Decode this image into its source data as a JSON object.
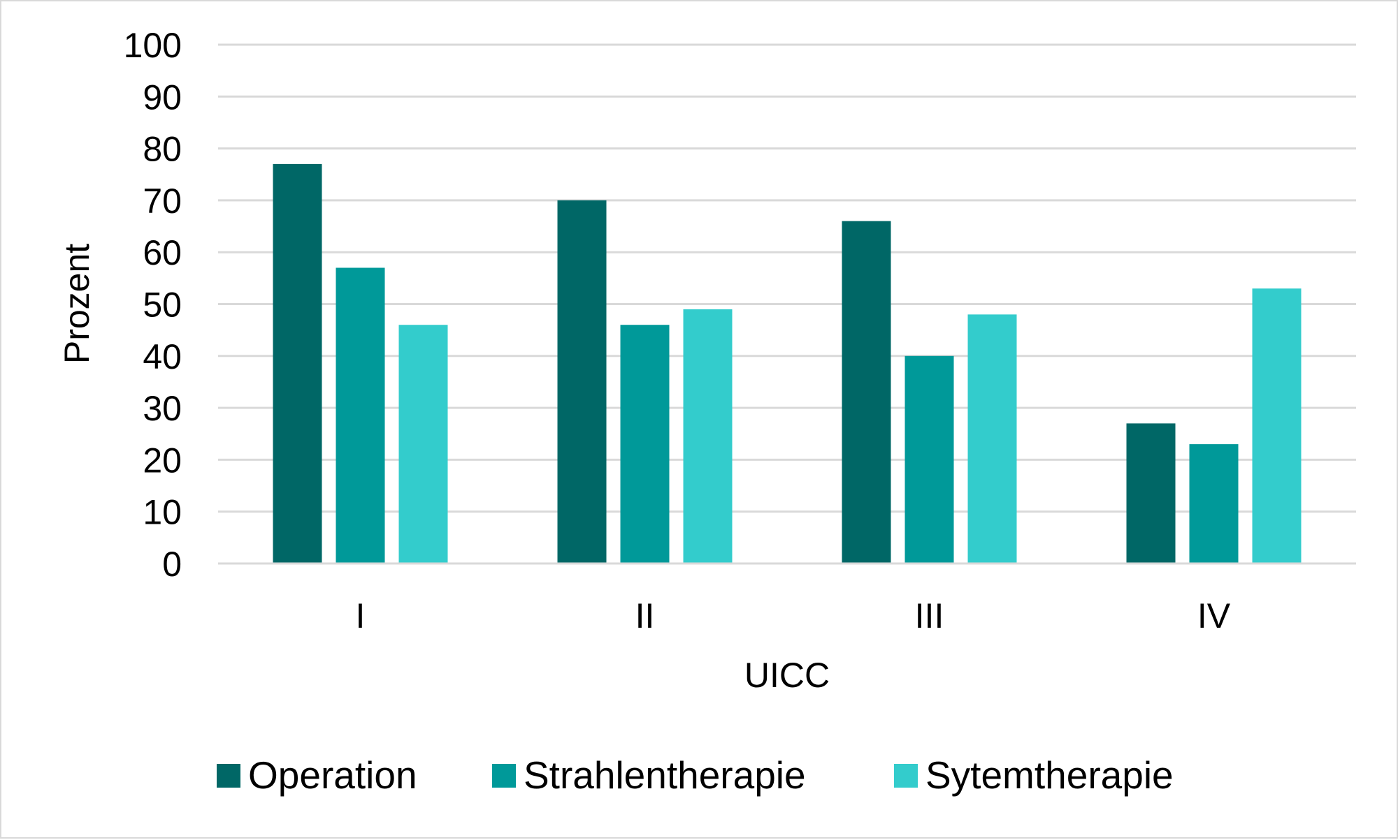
{
  "chart_data": {
    "type": "bar",
    "title": "",
    "xlabel": "UICC",
    "ylabel": "Prozent",
    "categories": [
      "I",
      "II",
      "III",
      "IV"
    ],
    "series": [
      {
        "name": "Operation",
        "color": "#006766",
        "values": [
          77,
          70,
          66,
          27
        ]
      },
      {
        "name": "Strahlentherapie",
        "color": "#009999",
        "values": [
          57,
          46,
          40,
          23
        ]
      },
      {
        "name": "Sytemtherapie",
        "color": "#33cccc",
        "values": [
          46,
          49,
          48,
          53
        ]
      }
    ],
    "ylim": [
      0,
      100
    ],
    "yticks": [
      "0",
      "10",
      "20",
      "30",
      "40",
      "50",
      "60",
      "70",
      "80",
      "90",
      "100"
    ],
    "grid": true,
    "grid_color": "#d9d9d9",
    "legend_position": "bottom"
  }
}
